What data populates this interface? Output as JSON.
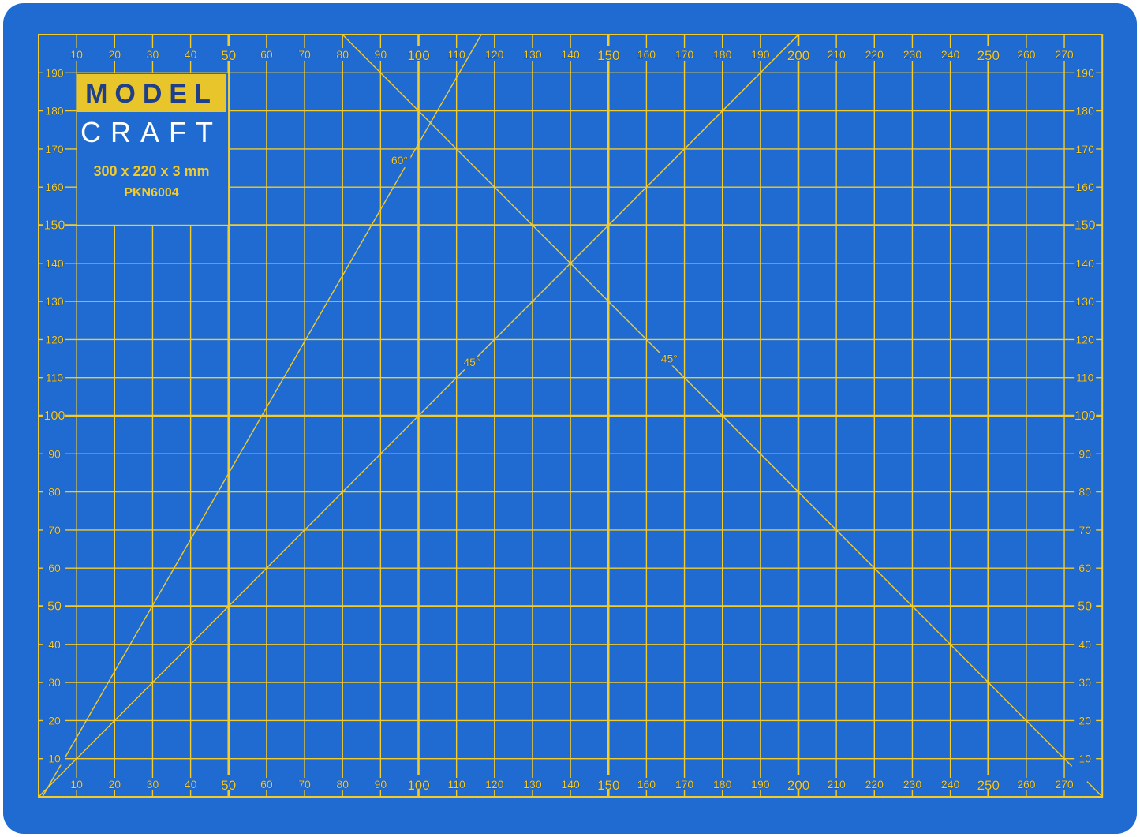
{
  "mat": {
    "brand_top": "MODEL",
    "brand_bottom": "CRAFT",
    "size": "300 x 220 x 3 mm",
    "product_code": "PKN6004",
    "angle_labels": [
      "60°",
      "45°",
      "45°"
    ],
    "x_ticks": [
      "10",
      "20",
      "30",
      "40",
      "50",
      "60",
      "70",
      "80",
      "90",
      "100",
      "110",
      "120",
      "130",
      "140",
      "150",
      "160",
      "170",
      "180",
      "190",
      "200",
      "210",
      "220",
      "230",
      "240",
      "250",
      "260",
      "270"
    ],
    "y_ticks": [
      "10",
      "20",
      "30",
      "40",
      "50",
      "60",
      "70",
      "80",
      "90",
      "100",
      "110",
      "120",
      "130",
      "140",
      "150",
      "160",
      "170",
      "180",
      "190"
    ],
    "colors": {
      "mat": "#1f6bd2",
      "grid": "#f3cb2a",
      "text_dark": "#1a3a7a"
    }
  }
}
